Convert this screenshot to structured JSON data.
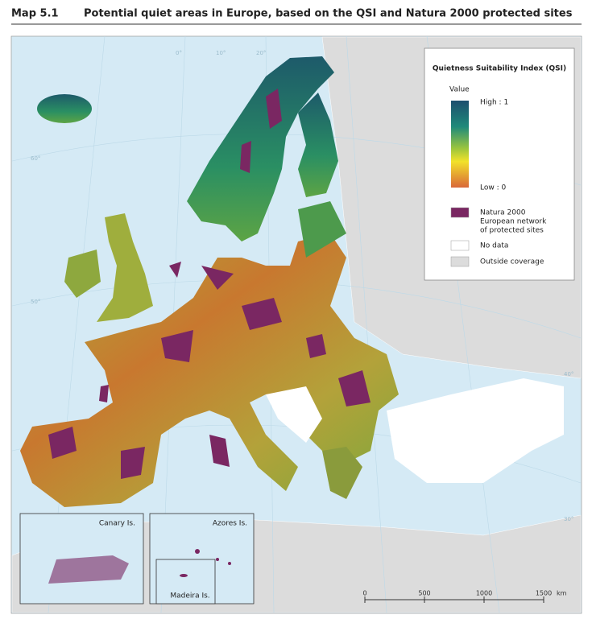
{
  "header": {
    "label": "Map 5.1",
    "title": "Potential quiet areas in Europe, based on the QSI and Natura 2000 protected sites"
  },
  "legend": {
    "title": "Quietness Suitability Index (QSI)",
    "scale_title": "Value",
    "high": "High : 1",
    "low": "Low : 0",
    "items": [
      {
        "label": [
          "Natura 2000",
          "European network",
          "of protected sites"
        ],
        "color": "#7a2762"
      },
      {
        "label": [
          "No data"
        ],
        "color": "#ffffff"
      },
      {
        "label": [
          "Outside coverage"
        ],
        "color": "#dcdcdc"
      }
    ]
  },
  "insets": {
    "canary": "Canary Is.",
    "azores": "Azores Is.",
    "madeira": "Madeira Is."
  },
  "graticule_labels": [
    "60°",
    "50°",
    "40°",
    "30°",
    "20°",
    "10°",
    "0°"
  ],
  "scale_bar": {
    "ticks": [
      0,
      500,
      1000,
      1500
    ],
    "unit": "km"
  }
}
